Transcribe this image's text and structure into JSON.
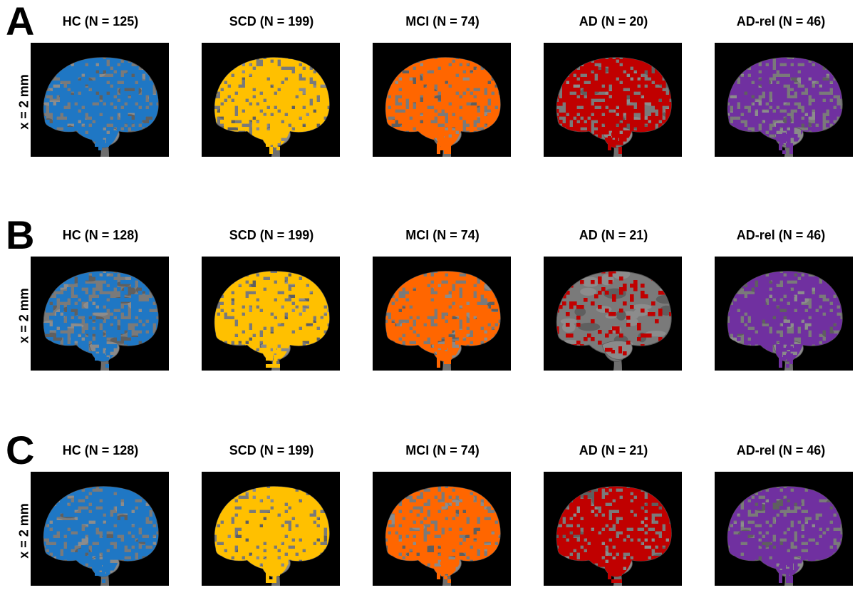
{
  "figure": {
    "view_label": "x = 2 mm",
    "group_colors": {
      "HC": "#1f77c4",
      "SCD": "#ffc000",
      "MCI": "#ff6600",
      "AD": "#c00000",
      "AD-rel": "#7030a0"
    },
    "brain_background": "#000000",
    "panels": [
      {
        "letter": "A",
        "cells": [
          {
            "title": "HC (N = 125)",
            "group": "HC",
            "coverage": 0.75
          },
          {
            "title": "SCD (N = 199)",
            "group": "SCD",
            "coverage": 0.8
          },
          {
            "title": "MCI (N = 74)",
            "group": "MCI",
            "coverage": 0.8
          },
          {
            "title": "AD (N = 20)",
            "group": "AD",
            "coverage": 0.7
          },
          {
            "title": "AD-rel (N = 46)",
            "group": "AD-rel",
            "coverage": 0.7
          }
        ]
      },
      {
        "letter": "B",
        "cells": [
          {
            "title": "HC (N = 128)",
            "group": "HC",
            "coverage": 0.6
          },
          {
            "title": "SCD (N = 199)",
            "group": "SCD",
            "coverage": 0.8
          },
          {
            "title": "MCI (N = 74)",
            "group": "MCI",
            "coverage": 0.75
          },
          {
            "title": "AD (N = 21)",
            "group": "AD",
            "coverage": 0.15
          },
          {
            "title": "AD-rel (N = 46)",
            "group": "AD-rel",
            "coverage": 0.75
          }
        ]
      },
      {
        "letter": "C",
        "cells": [
          {
            "title": "HC (N = 128)",
            "group": "HC",
            "coverage": 0.75
          },
          {
            "title": "SCD (N = 199)",
            "group": "SCD",
            "coverage": 0.85
          },
          {
            "title": "MCI (N = 74)",
            "group": "MCI",
            "coverage": 0.75
          },
          {
            "title": "AD (N = 21)",
            "group": "AD",
            "coverage": 0.8
          },
          {
            "title": "AD-rel (N = 46)",
            "group": "AD-rel",
            "coverage": 0.75
          }
        ]
      }
    ]
  }
}
